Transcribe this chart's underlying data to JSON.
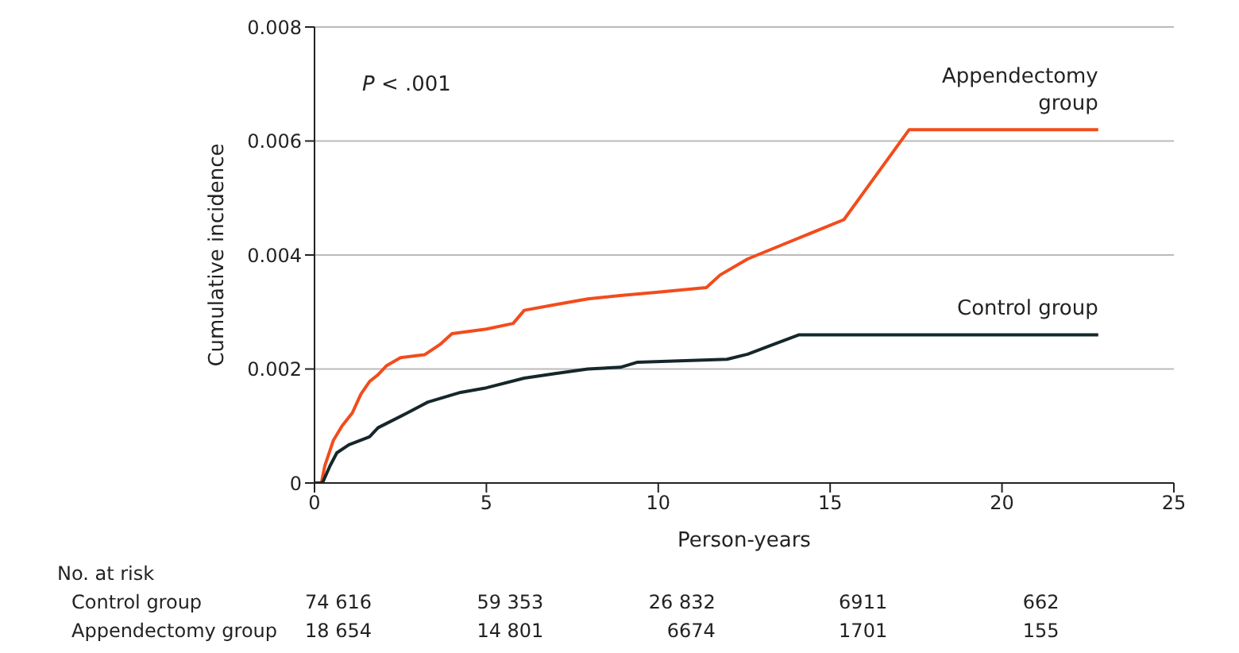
{
  "chart_data": {
    "type": "line",
    "xlabel": "Person-years",
    "ylabel": "Cumulative incidence",
    "xlim": [
      0,
      25
    ],
    "xticks": [
      0,
      5,
      10,
      15,
      20,
      25
    ],
    "ylim": [
      0,
      0.008
    ],
    "yticks": [
      0,
      0.002,
      0.004,
      0.006,
      0.008
    ],
    "grid": "y",
    "marker": "none",
    "line_style": "solid",
    "series": [
      {
        "name": "Appendectomy group",
        "color": "#f24c1c",
        "x": [
          0,
          0.2,
          0.3,
          0.55,
          0.8,
          1.1,
          1.35,
          1.6,
          1.85,
          2.1,
          2.5,
          3.2,
          3.65,
          4.0,
          5.0,
          5.78,
          6.1,
          7.0,
          7.95,
          8.9,
          10.0,
          11.4,
          11.8,
          12.6,
          15.4,
          17.3,
          22.8
        ],
        "values": [
          0,
          0,
          0.0003,
          0.00075,
          0.001,
          0.00123,
          0.00156,
          0.00178,
          0.0019,
          0.00206,
          0.0022,
          0.00225,
          0.00243,
          0.00262,
          0.0027,
          0.0028,
          0.00303,
          0.00313,
          0.00323,
          0.00329,
          0.00335,
          0.00343,
          0.00365,
          0.00393,
          0.00462,
          0.0062,
          0.0062
        ]
      },
      {
        "name": "Control group",
        "color": "#15272a",
        "x": [
          0,
          0.23,
          0.45,
          0.65,
          1.0,
          1.6,
          1.85,
          2.7,
          3.3,
          4.25,
          5.0,
          6.1,
          7.0,
          7.95,
          8.9,
          9.4,
          12.0,
          12.6,
          13.3,
          14.1,
          22.8
        ],
        "values": [
          0,
          0,
          0.0003,
          0.00053,
          0.00067,
          0.00081,
          0.00097,
          0.00123,
          0.00142,
          0.00159,
          0.00167,
          0.00184,
          0.00192,
          0.002,
          0.00203,
          0.00212,
          0.00217,
          0.00226,
          0.00242,
          0.0026,
          0.0026
        ]
      }
    ],
    "annotations": [
      "P < .001",
      "No. at risk",
      "Control group",
      "74 616",
      "59 353",
      "26 832",
      "6911",
      "662",
      "Appendectomy group",
      "18 654",
      "14 801",
      "6674",
      "1701",
      "155"
    ]
  }
}
